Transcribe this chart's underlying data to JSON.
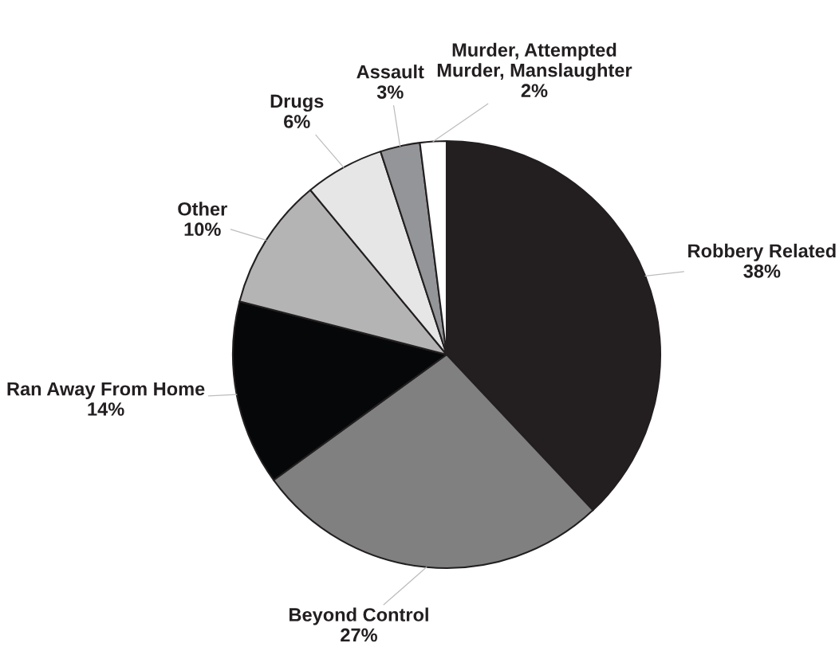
{
  "chart_data": {
    "type": "pie",
    "categories": [
      "Robbery Related",
      "Beyond Control",
      "Ran Away From Home",
      "Other",
      "Drugs",
      "Assault",
      "Murder, Attempted\nMurder, Manslaughter"
    ],
    "values": [
      38,
      27,
      14,
      10,
      6,
      3,
      2
    ],
    "value_labels": [
      "38%",
      "27%",
      "14%",
      "10%",
      "6%",
      "3%",
      "2%"
    ],
    "colors": [
      "#231f20",
      "#808080",
      "#050708",
      "#b4b4b4",
      "#e6e6e6",
      "#939598",
      "#ffffff"
    ]
  }
}
